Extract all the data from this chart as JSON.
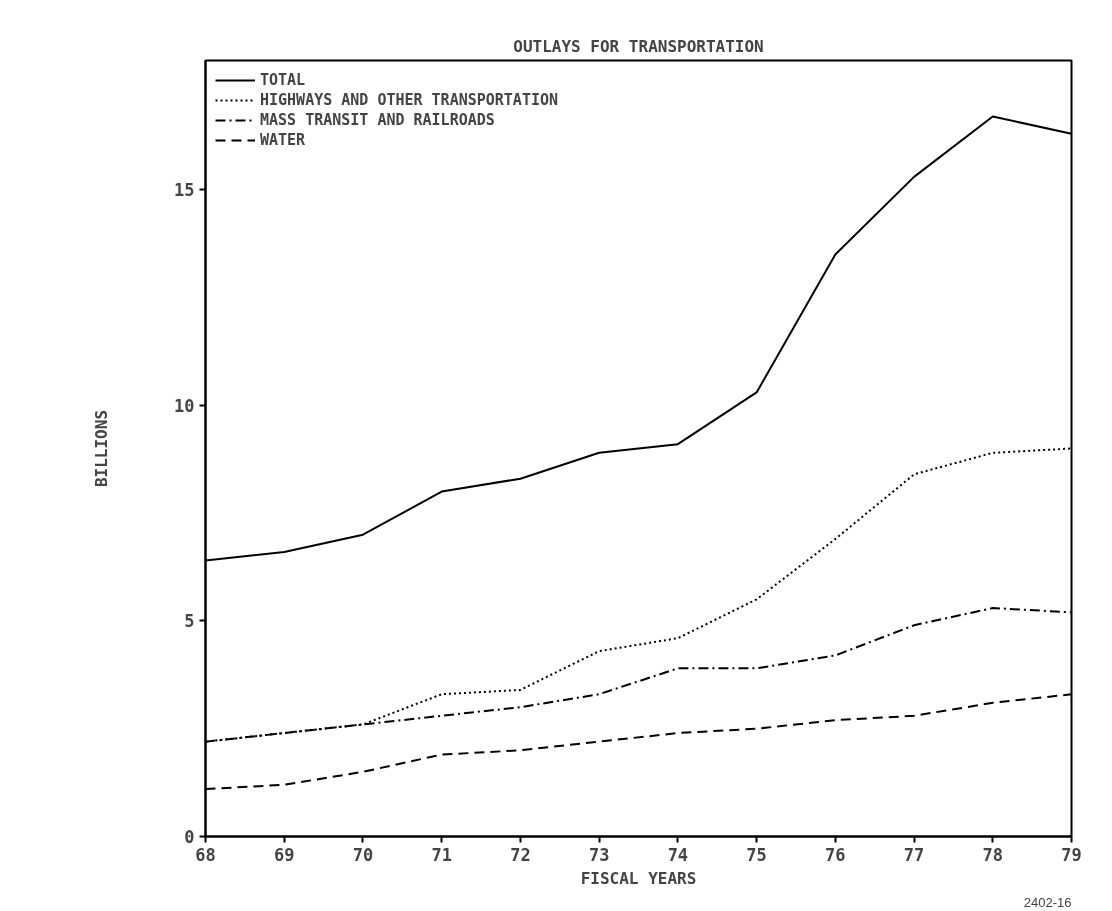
{
  "chart_data": {
    "type": "line",
    "title": "OUTLAYS FOR TRANSPORTATION",
    "xlabel": "FISCAL YEARS",
    "ylabel": "BILLIONS",
    "x": [
      68,
      69,
      70,
      71,
      72,
      73,
      74,
      75,
      76,
      77,
      78,
      79
    ],
    "series": [
      {
        "name": "TOTAL",
        "color": "#000000",
        "line_style": "solid",
        "values": [
          6.4,
          6.6,
          7.0,
          8.0,
          8.3,
          8.9,
          9.1,
          10.3,
          13.5,
          15.3,
          16.7,
          16.3
        ]
      },
      {
        "name": "HIGHWAYS AND OTHER TRANSPORTATION",
        "color": "#000000",
        "line_style": "dotted",
        "values": [
          2.2,
          2.4,
          2.6,
          3.3,
          3.4,
          4.3,
          4.6,
          5.5,
          6.9,
          8.4,
          8.9,
          9.0
        ]
      },
      {
        "name": "MASS TRANSIT AND RAILROADS",
        "color": "#000000",
        "line_style": "dashdot",
        "values": [
          2.2,
          2.4,
          2.6,
          2.8,
          3.0,
          3.3,
          3.9,
          3.9,
          4.2,
          4.9,
          5.3,
          5.2
        ]
      },
      {
        "name": "WATER",
        "color": "#000000",
        "line_style": "dashed",
        "values": [
          1.1,
          1.2,
          1.5,
          1.9,
          2.0,
          2.2,
          2.4,
          2.5,
          2.7,
          2.8,
          3.1,
          3.3
        ]
      }
    ],
    "xlim": [
      68,
      79
    ],
    "ylim": [
      0,
      18
    ],
    "xticks": [
      68,
      69,
      70,
      71,
      72,
      73,
      74,
      75,
      76,
      77,
      78,
      79
    ],
    "yticks": [
      0,
      5,
      10,
      15
    ],
    "grid": false,
    "legend": "top left",
    "marker": "none",
    "annotations": [
      "2402-16"
    ]
  }
}
